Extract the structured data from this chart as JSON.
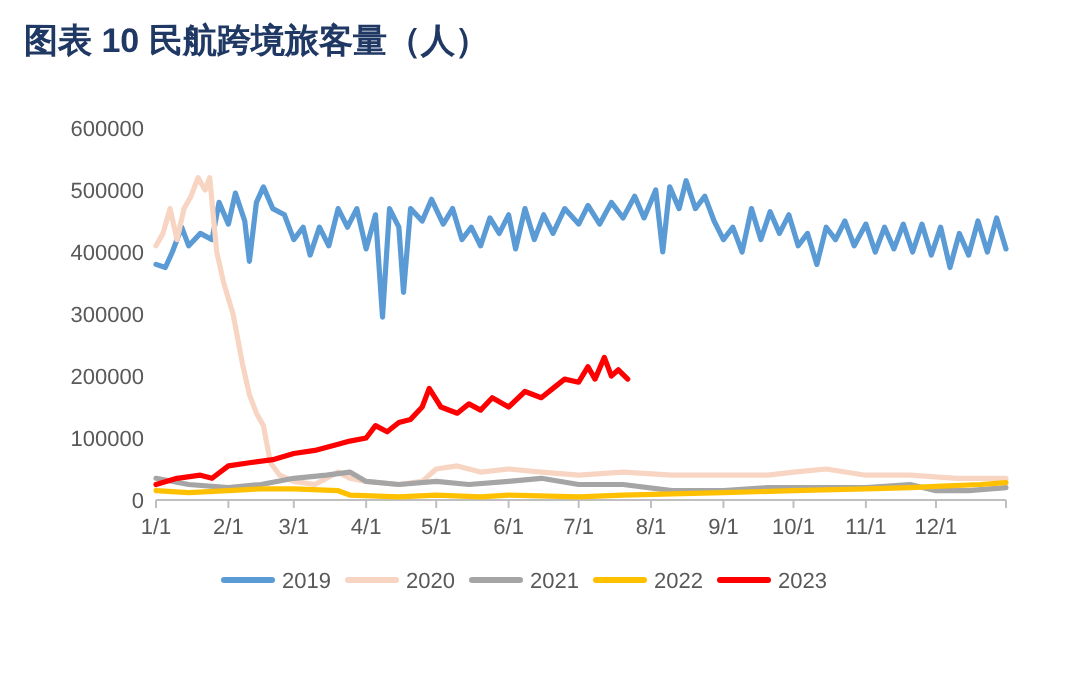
{
  "chart_data": {
    "type": "line",
    "title": "图表 10 民航跨境旅客量（人）",
    "xlim": [
      "--01-01",
      "--12-31"
    ],
    "xticks": [
      {
        "value": "--01-01",
        "label": "1/1"
      },
      {
        "value": "--02-01",
        "label": "2/1"
      },
      {
        "value": "--03-01",
        "label": "3/1"
      },
      {
        "value": "--04-01",
        "label": "4/1"
      },
      {
        "value": "--05-01",
        "label": "5/1"
      },
      {
        "value": "--06-01",
        "label": "6/1"
      },
      {
        "value": "--07-01",
        "label": "7/1"
      },
      {
        "value": "--08-01",
        "label": "8/1"
      },
      {
        "value": "--09-01",
        "label": "9/1"
      },
      {
        "value": "--10-01",
        "label": "10/1"
      },
      {
        "value": "--11-01",
        "label": "11/1"
      },
      {
        "value": "--12-01",
        "label": "12/1"
      }
    ],
    "ylim": [
      0,
      600000
    ],
    "yticks": [
      0,
      100000,
      200000,
      300000,
      400000,
      500000,
      600000
    ],
    "grid": false,
    "legend": "bottom",
    "line_style": "solid",
    "marker": "none",
    "series": [
      {
        "name": "2019",
        "color": "#5b9bd5",
        "x": [
          "--01-01",
          "--01-05",
          "--01-08",
          "--01-12",
          "--01-15",
          "--01-20",
          "--01-25",
          "--01-28",
          "--02-01",
          "--02-04",
          "--02-08",
          "--02-10",
          "--02-13",
          "--02-16",
          "--02-20",
          "--02-25",
          "--03-01",
          "--03-05",
          "--03-08",
          "--03-12",
          "--03-16",
          "--03-20",
          "--03-24",
          "--03-28",
          "--04-01",
          "--04-05",
          "--04-08",
          "--04-11",
          "--04-15",
          "--04-17",
          "--04-20",
          "--04-25",
          "--04-29",
          "--05-04",
          "--05-08",
          "--05-12",
          "--05-16",
          "--05-20",
          "--05-24",
          "--05-28",
          "--06-01",
          "--06-04",
          "--06-08",
          "--06-12",
          "--06-16",
          "--06-20",
          "--06-25",
          "--07-01",
          "--07-05",
          "--07-10",
          "--07-15",
          "--07-20",
          "--07-25",
          "--07-29",
          "--08-03",
          "--08-06",
          "--08-09",
          "--08-13",
          "--08-16",
          "--08-20",
          "--08-24",
          "--08-28",
          "--09-01",
          "--09-05",
          "--09-09",
          "--09-13",
          "--09-17",
          "--09-21",
          "--09-25",
          "--09-29",
          "--10-03",
          "--10-07",
          "--10-11",
          "--10-15",
          "--10-19",
          "--10-23",
          "--10-27",
          "--11-01",
          "--11-05",
          "--11-09",
          "--11-13",
          "--11-17",
          "--11-21",
          "--11-25",
          "--11-29",
          "--12-03",
          "--12-07",
          "--12-11",
          "--12-15",
          "--12-19",
          "--12-23",
          "--12-27",
          "--12-31"
        ],
        "values": [
          380000,
          375000,
          400000,
          440000,
          410000,
          430000,
          420000,
          480000,
          445000,
          495000,
          450000,
          385000,
          480000,
          505000,
          470000,
          460000,
          420000,
          440000,
          395000,
          440000,
          410000,
          470000,
          440000,
          470000,
          405000,
          460000,
          295000,
          470000,
          440000,
          335000,
          470000,
          450000,
          485000,
          445000,
          470000,
          420000,
          440000,
          410000,
          455000,
          430000,
          460000,
          405000,
          470000,
          420000,
          460000,
          430000,
          470000,
          445000,
          475000,
          445000,
          480000,
          455000,
          490000,
          455000,
          500000,
          400000,
          505000,
          470000,
          515000,
          470000,
          490000,
          450000,
          420000,
          440000,
          400000,
          470000,
          420000,
          465000,
          430000,
          460000,
          410000,
          430000,
          380000,
          440000,
          420000,
          450000,
          410000,
          445000,
          400000,
          440000,
          405000,
          445000,
          400000,
          445000,
          395000,
          440000,
          375000,
          430000,
          395000,
          450000,
          400000,
          455000,
          405000
        ]
      },
      {
        "name": "2020",
        "color": "#f8d5c3",
        "x": [
          "--01-01",
          "--01-04",
          "--01-07",
          "--01-10",
          "--01-13",
          "--01-16",
          "--01-19",
          "--01-22",
          "--01-24",
          "--01-27",
          "--01-30",
          "--02-03",
          "--02-07",
          "--02-10",
          "--02-13",
          "--02-16",
          "--02-19",
          "--02-23",
          "--03-01",
          "--03-10",
          "--03-20",
          "--03-25",
          "--04-01",
          "--04-15",
          "--04-25",
          "--05-01",
          "--05-10",
          "--05-20",
          "--06-01",
          "--06-15",
          "--07-01",
          "--07-20",
          "--08-10",
          "--09-01",
          "--09-20",
          "--10-01",
          "--10-15",
          "--11-01",
          "--11-20",
          "--12-10",
          "--12-31"
        ],
        "values": [
          410000,
          430000,
          470000,
          420000,
          470000,
          490000,
          520000,
          500000,
          520000,
          400000,
          350000,
          300000,
          220000,
          170000,
          140000,
          120000,
          60000,
          40000,
          30000,
          25000,
          45000,
          35000,
          30000,
          25000,
          30000,
          50000,
          55000,
          45000,
          50000,
          45000,
          40000,
          45000,
          40000,
          40000,
          40000,
          45000,
          50000,
          40000,
          40000,
          35000,
          35000
        ]
      },
      {
        "name": "2021",
        "color": "#a5a5a5",
        "x": [
          "--01-01",
          "--01-15",
          "--02-01",
          "--02-15",
          "--03-01",
          "--03-15",
          "--03-25",
          "--04-01",
          "--04-15",
          "--05-01",
          "--05-15",
          "--06-01",
          "--06-15",
          "--07-01",
          "--07-20",
          "--08-10",
          "--09-01",
          "--09-20",
          "--10-15",
          "--11-01",
          "--11-20",
          "--12-01",
          "--12-15",
          "--12-31"
        ],
        "values": [
          35000,
          25000,
          20000,
          25000,
          35000,
          40000,
          45000,
          30000,
          25000,
          30000,
          25000,
          30000,
          35000,
          25000,
          25000,
          15000,
          15000,
          20000,
          20000,
          20000,
          25000,
          15000,
          15000,
          20000
        ]
      },
      {
        "name": "2022",
        "color": "#ffc000",
        "x": [
          "--01-01",
          "--01-15",
          "--02-01",
          "--02-15",
          "--03-01",
          "--03-20",
          "--03-25",
          "--04-15",
          "--05-01",
          "--05-20",
          "--06-01",
          "--07-01",
          "--07-20",
          "--08-10",
          "--09-01",
          "--10-01",
          "--11-01",
          "--11-20",
          "--12-01",
          "--12-20",
          "--12-31"
        ],
        "values": [
          15000,
          12000,
          15000,
          18000,
          18000,
          15000,
          8000,
          5000,
          8000,
          5000,
          8000,
          5000,
          8000,
          10000,
          12000,
          15000,
          18000,
          20000,
          22000,
          25000,
          28000
        ]
      },
      {
        "name": "2023",
        "color": "#ff0000",
        "x": [
          "--01-01",
          "--01-10",
          "--01-20",
          "--01-25",
          "--02-01",
          "--02-10",
          "--02-20",
          "--03-01",
          "--03-10",
          "--03-20",
          "--03-25",
          "--04-01",
          "--04-05",
          "--04-10",
          "--04-15",
          "--04-20",
          "--04-25",
          "--04-28",
          "--05-03",
          "--05-10",
          "--05-15",
          "--05-20",
          "--05-25",
          "--06-01",
          "--06-08",
          "--06-15",
          "--06-20",
          "--06-25",
          "--07-01",
          "--07-05",
          "--07-08",
          "--07-12",
          "--07-15",
          "--07-18",
          "--07-22"
        ],
        "values": [
          25000,
          35000,
          40000,
          35000,
          55000,
          60000,
          65000,
          75000,
          80000,
          90000,
          95000,
          100000,
          120000,
          110000,
          125000,
          130000,
          150000,
          180000,
          150000,
          140000,
          155000,
          145000,
          165000,
          150000,
          175000,
          165000,
          180000,
          195000,
          190000,
          215000,
          195000,
          230000,
          200000,
          210000,
          195000
        ]
      }
    ]
  }
}
